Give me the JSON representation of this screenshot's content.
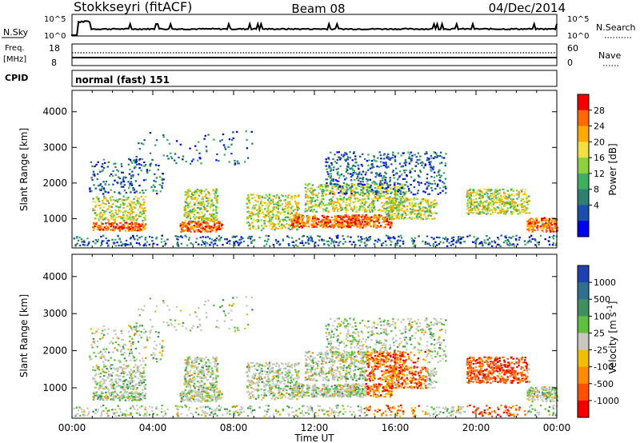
{
  "header": {
    "station": "Stokkseyri (fitACF)",
    "beam": "Beam 08",
    "date": "04/Dec/2014"
  },
  "top_panels": {
    "nsky_label": "N.Sky",
    "nsearch_label": "N.Search",
    "nsky_tick_top": "10^5",
    "nsky_tick_bottom": "10^0",
    "freq_label_1": "Freq.",
    "freq_label_2": "[MHz]",
    "freq_ticks": [
      "18",
      "8"
    ],
    "nave_label": "Nave",
    "nave_ticks": [
      "60",
      "0"
    ],
    "cpid_label": "CPID",
    "cpid_value": "normal (fast) 151"
  },
  "chart_data": [
    {
      "type": "heatmap",
      "name": "power",
      "ylabel": "Slant Range [km]",
      "xlabel": "Time UT",
      "x_ticks": [
        "00:00",
        "04:00",
        "08:00",
        "12:00",
        "16:00",
        "20:00",
        "00:00"
      ],
      "y_ticks": [
        1000,
        2000,
        3000,
        4000
      ],
      "xlim_hours": [
        0,
        24
      ],
      "ylim_km": [
        180,
        4600
      ],
      "colorbar": {
        "label": "Power [dB]",
        "ticks": [
          "28",
          "24",
          "20",
          "16",
          "12",
          "8",
          "4"
        ],
        "colors": [
          "#ee0000",
          "#ff6a00",
          "#ffaa00",
          "#f0e040",
          "#90d040",
          "#3fae60",
          "#2f7f70",
          "#1a4faa",
          "#0000ee"
        ]
      }
    },
    {
      "type": "heatmap",
      "name": "velocity",
      "ylabel": "Slant Range [km]",
      "xlabel": "Time UT",
      "x_ticks": [
        "00:00",
        "04:00",
        "08:00",
        "12:00",
        "16:00",
        "20:00",
        "00:00"
      ],
      "y_ticks": [
        1000,
        2000,
        3000,
        4000
      ],
      "xlim_hours": [
        0,
        24
      ],
      "ylim_km": [
        180,
        4600
      ],
      "colorbar": {
        "label": "Velocity [m s^-1]",
        "ticks": [
          "1000",
          "500",
          "100",
          "25",
          "-25",
          "-100",
          "-500",
          "-1000"
        ],
        "colors": [
          "#2040b0",
          "#2f6f8f",
          "#3f8f5f",
          "#5fc040",
          "#c8c8c0",
          "#f0c000",
          "#ff8c00",
          "#ff5000",
          "#ee0000"
        ]
      }
    }
  ]
}
